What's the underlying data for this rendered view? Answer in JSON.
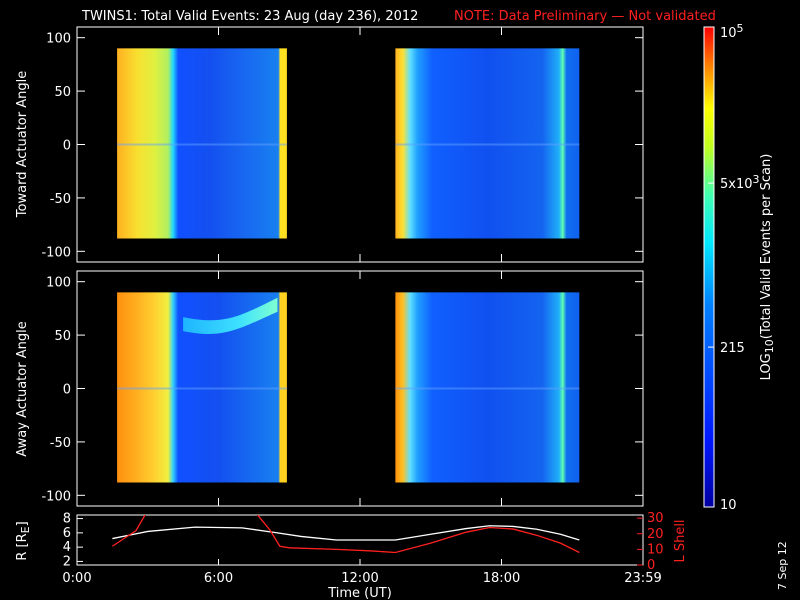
{
  "title": "TWINS1: Total Valid Events: 23 Aug (day 236), 2012",
  "note": "NOTE: Data Preliminary — Not validated",
  "date_stamp": "7 Sep 12",
  "colorbar": {
    "label": "LOG10(Total Valid Events per Scan)",
    "label_main": "LOG",
    "label_sub": "10",
    "label_rest": "(Total Valid Events per Scan)",
    "ticks": [
      {
        "value": 100000,
        "base": "10",
        "exp": "5"
      },
      {
        "value": 5000,
        "base": "5x10",
        "exp": "3"
      },
      {
        "value": 215,
        "base": "215",
        "exp": ""
      },
      {
        "value": 10,
        "base": "10",
        "exp": ""
      }
    ],
    "range": [
      10,
      100000
    ],
    "scale": "log",
    "colors": [
      "#0000a0",
      "#0030ff",
      "#00a0ff",
      "#00ffff",
      "#80ff80",
      "#ffff00",
      "#ff8000",
      "#ff0000"
    ]
  },
  "chart_data": [
    {
      "type": "heatmap",
      "ylabel": "Toward Actuator Angle",
      "yticks": [
        "100",
        "50",
        "0",
        "-50",
        "-100"
      ],
      "ylim": [
        -110,
        110
      ],
      "xlim": [
        0,
        24
      ],
      "scan_blocks": [
        {
          "start_hour": 1.7,
          "end_hour": 8.9,
          "angle_range": [
            -88,
            90
          ]
        },
        {
          "start_hour": 13.5,
          "end_hour": 21.3,
          "angle_range": [
            -88,
            90
          ]
        }
      ],
      "approx_intensity_by_hour": [
        {
          "hour": 1.7,
          "level": "yellow"
        },
        {
          "hour": 3.5,
          "level": "yellow-green"
        },
        {
          "hour": 4.2,
          "level": "cyan"
        },
        {
          "hour": 4.5,
          "level": "blue"
        },
        {
          "hour": 8.6,
          "level": "yellow"
        },
        {
          "hour": 13.5,
          "level": "yellow"
        },
        {
          "hour": 14.3,
          "level": "cyan"
        },
        {
          "hour": 15.0,
          "level": "blue"
        },
        {
          "hour": 20.0,
          "level": "cyan"
        },
        {
          "hour": 21.3,
          "level": "blue"
        }
      ]
    },
    {
      "type": "heatmap",
      "ylabel": "Away Actuator Angle",
      "yticks": [
        "100",
        "50",
        "0",
        "-50",
        "-100"
      ],
      "ylim": [
        -110,
        110
      ],
      "xlim": [
        0,
        24
      ],
      "scan_blocks": [
        {
          "start_hour": 1.7,
          "end_hour": 8.9,
          "angle_range": [
            -88,
            90
          ]
        },
        {
          "start_hour": 13.5,
          "end_hour": 21.3,
          "angle_range": [
            -88,
            90
          ]
        }
      ],
      "approx_intensity_by_hour": [
        {
          "hour": 1.7,
          "level": "orange"
        },
        {
          "hour": 3.0,
          "level": "yellow"
        },
        {
          "hour": 4.2,
          "level": "cyan"
        },
        {
          "hour": 4.5,
          "level": "blue"
        },
        {
          "hour": 8.6,
          "level": "yellow"
        },
        {
          "hour": 13.5,
          "level": "orange"
        },
        {
          "hour": 14.3,
          "level": "cyan"
        },
        {
          "hour": 15.0,
          "level": "blue"
        },
        {
          "hour": 20.0,
          "level": "cyan"
        },
        {
          "hour": 21.3,
          "level": "blue"
        }
      ],
      "feature": {
        "description": "cyan band",
        "from_hour": 4.5,
        "to_hour": 8.5,
        "angle_from": 65,
        "angle_to": 85
      }
    },
    {
      "type": "line",
      "ylabel_left": "R [RE]",
      "ylabel_left_main": "R [R",
      "ylabel_left_sub": "E",
      "ylabel_left_end": "]",
      "ylabel_right": "L Shell",
      "yticks_left": [
        "8",
        "6",
        "4",
        "2"
      ],
      "ylim_left": [
        1.5,
        8.5
      ],
      "yticks_right": [
        "30",
        "20",
        "10",
        "0"
      ],
      "ylim_right": [
        0,
        32
      ],
      "xlabel": "Time (UT)",
      "xticks": [
        {
          "value": 0,
          "label": "0:00"
        },
        {
          "value": 6,
          "label": "6:00"
        },
        {
          "value": 12,
          "label": "12:00"
        },
        {
          "value": 18,
          "label": "18:00"
        },
        {
          "value": 24,
          "label": "23:59"
        }
      ],
      "xlim": [
        0,
        24
      ],
      "series": [
        {
          "name": "R",
          "color": "#ffffff",
          "axis": "left",
          "x": [
            1.5,
            3.0,
            5.0,
            7.0,
            8.5,
            9.5,
            11.0,
            12.5,
            13.5,
            15.0,
            16.5,
            17.5,
            18.5,
            19.5,
            20.5,
            21.3
          ],
          "y": [
            5.2,
            6.2,
            6.8,
            6.7,
            6.0,
            5.5,
            5.0,
            5.0,
            5.0,
            5.8,
            6.6,
            7.0,
            6.9,
            6.5,
            5.8,
            5.0
          ]
        },
        {
          "name": "L Shell",
          "color": "#ff2020",
          "axis": "right",
          "x": [
            1.5,
            2.5,
            3.0,
            3.5,
            7.0,
            7.5,
            8.2,
            8.6,
            9.0,
            11.0,
            12.5,
            13.5,
            15.0,
            16.5,
            17.5,
            18.5,
            19.5,
            20.5,
            21.3
          ],
          "y": [
            12,
            22,
            35,
            35,
            35,
            35,
            22,
            12,
            11,
            10,
            9,
            8,
            14,
            21,
            24,
            23,
            19,
            14,
            8
          ]
        }
      ]
    }
  ]
}
